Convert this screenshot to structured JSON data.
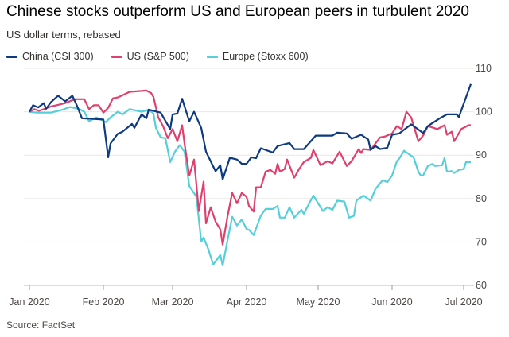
{
  "title": "Chinese stocks outperform US and European peers in turbulent 2020",
  "subtitle": "US dollar terms, rebased",
  "source": "Source: FactSet",
  "chart_data": {
    "type": "line",
    "title": "Chinese stocks outperform US and European peers in turbulent 2020",
    "subtitle": "US dollar terms, rebased",
    "xlabel": "",
    "ylabel": "",
    "x_unit": "days since 1 Jan 2020",
    "xlim": [
      0,
      185
    ],
    "ylim": [
      60,
      110
    ],
    "yticks": [
      60,
      70,
      80,
      90,
      100,
      110
    ],
    "y_axis_side": "right",
    "xticks": [
      {
        "day": 0,
        "label": "Jan 2020"
      },
      {
        "day": 31,
        "label": "Feb 2020"
      },
      {
        "day": 60,
        "label": "Mar 2020"
      },
      {
        "day": 91,
        "label": "Apr 2020"
      },
      {
        "day": 121,
        "label": "May 2020"
      },
      {
        "day": 152,
        "label": "Jun 2020"
      },
      {
        "day": 182,
        "label": "Jul 2020"
      }
    ],
    "grid": true,
    "legend_position": "top-left",
    "series": [
      {
        "name": "China (CSI 300)",
        "color": "#0d3a80",
        "x": [
          0,
          1.5,
          3.7,
          6,
          7,
          9,
          12,
          15,
          18,
          20,
          22,
          31,
          33,
          34,
          37,
          39,
          43,
          44,
          47,
          49,
          50,
          55,
          59,
          60,
          62,
          64,
          67,
          69,
          72,
          74,
          78,
          80,
          81,
          84,
          87,
          89,
          91,
          93,
          95,
          97,
          102,
          104,
          109,
          111,
          115,
          120,
          127,
          129,
          133,
          135,
          139,
          142,
          143,
          145,
          147,
          150,
          152,
          155,
          160,
          162,
          165,
          167,
          172,
          175,
          179,
          180,
          185
        ],
        "y": [
          100,
          101.5,
          101,
          102,
          100.7,
          102.2,
          103.7,
          102.4,
          103.7,
          101.3,
          98.5,
          98.2,
          89.5,
          92.7,
          94.9,
          95.4,
          97.2,
          96.3,
          99.4,
          98.5,
          100.5,
          99.8,
          96,
          99.4,
          99.6,
          103,
          97.8,
          100,
          96.3,
          90.8,
          86.3,
          87.7,
          84.4,
          89.4,
          89,
          88,
          88,
          89.5,
          89.3,
          91.6,
          90.6,
          92.1,
          92.8,
          91.4,
          91.4,
          94.5,
          94.5,
          95.2,
          95,
          93.8,
          94.7,
          93.6,
          91.2,
          92.1,
          91.4,
          91.7,
          94.7,
          95,
          97.1,
          96.3,
          95.1,
          96.7,
          98.5,
          99.4,
          99.4,
          98.8,
          106.4
        ]
      },
      {
        "name": "US (S&P 500)",
        "color": "#e0406e",
        "x": [
          0,
          2,
          4,
          9,
          12,
          15,
          19,
          23,
          25,
          27,
          29,
          31,
          33,
          35,
          37,
          39,
          42,
          47,
          49,
          51,
          52,
          54,
          56,
          58,
          60,
          62,
          64,
          65,
          67,
          69,
          71,
          73,
          74,
          76,
          78,
          80,
          81,
          83,
          85,
          87,
          89,
          91,
          92,
          94,
          95,
          97,
          99,
          101,
          103,
          104,
          105,
          107,
          108,
          111,
          113,
          115,
          118,
          119,
          122,
          125,
          127,
          130,
          133,
          135,
          138,
          139,
          140,
          143,
          145,
          147,
          149,
          152,
          154,
          156,
          158,
          160,
          163,
          165,
          167,
          171,
          174,
          175,
          177,
          178,
          181,
          184,
          185
        ],
        "y": [
          100,
          100.6,
          100.2,
          101.2,
          101.6,
          102,
          102.9,
          102.9,
          100.6,
          101.5,
          101.5,
          99.8,
          100.9,
          103.1,
          103.3,
          103.8,
          104.6,
          104.8,
          104.9,
          104.3,
          103.4,
          98.7,
          96.7,
          93.9,
          96,
          93.2,
          96.9,
          92.7,
          85.3,
          89,
          77.1,
          83.9,
          74.3,
          78,
          74.7,
          72.9,
          69.4,
          75.8,
          81.3,
          78.9,
          81.3,
          80.4,
          78.3,
          77,
          82.6,
          82.6,
          86.2,
          86.6,
          85.7,
          88,
          86.2,
          86.8,
          89,
          84.8,
          86.8,
          88.4,
          89.4,
          91.2,
          87.7,
          88.6,
          88.1,
          90.8,
          87.5,
          88.6,
          91.4,
          90.5,
          91.4,
          91.2,
          92.7,
          94.1,
          94.3,
          95,
          96.7,
          96,
          100,
          98.7,
          93.2,
          94.5,
          96.7,
          96,
          96.9,
          94.7,
          95.4,
          93.2,
          96,
          96.9,
          96.9
        ]
      },
      {
        "name": "Europe (Stoxx 600)",
        "color": "#55cfd9",
        "x": [
          0,
          3,
          9,
          14,
          17,
          21,
          23,
          25,
          28,
          30,
          32,
          34,
          37,
          39,
          42,
          47,
          50,
          52,
          53,
          55,
          57,
          59,
          61,
          63,
          65,
          67,
          70,
          72,
          73,
          75,
          77,
          80,
          81,
          83,
          85,
          87,
          89,
          91,
          92,
          94,
          97,
          99,
          102,
          104,
          105,
          107,
          109,
          111,
          114,
          115,
          119,
          123,
          125,
          127,
          129,
          132,
          134,
          136,
          137,
          140,
          143,
          145,
          148,
          150,
          152,
          154,
          155,
          157,
          161,
          163,
          164,
          165,
          167,
          169,
          170,
          173,
          174,
          175,
          177,
          178,
          180,
          182,
          183,
          185
        ],
        "y": [
          100,
          99.8,
          99.8,
          100.5,
          101.1,
          100.6,
          100,
          97.8,
          98.7,
          98.2,
          97.6,
          98.7,
          100,
          99.4,
          100.6,
          100,
          100.5,
          99.6,
          96.3,
          94.1,
          93.9,
          88.4,
          90.8,
          92.3,
          90.8,
          82.9,
          80.4,
          70.1,
          71,
          68.3,
          64.8,
          67,
          64.6,
          70.3,
          75.8,
          73.8,
          75.2,
          73,
          72.8,
          71.6,
          76.1,
          77.6,
          77.6,
          78.3,
          75.6,
          75.6,
          78,
          75.6,
          77.4,
          76.5,
          80.7,
          77.1,
          78,
          77.4,
          79.5,
          79.3,
          75.6,
          76,
          79.5,
          80.7,
          79.5,
          82.2,
          84.2,
          83.8,
          85.3,
          88.6,
          89.2,
          91,
          89.5,
          86.2,
          85.3,
          85.3,
          87.5,
          88,
          87.5,
          87.7,
          89.4,
          86.2,
          86.3,
          85.9,
          86.6,
          86.8,
          88.4,
          88.4
        ]
      }
    ]
  }
}
